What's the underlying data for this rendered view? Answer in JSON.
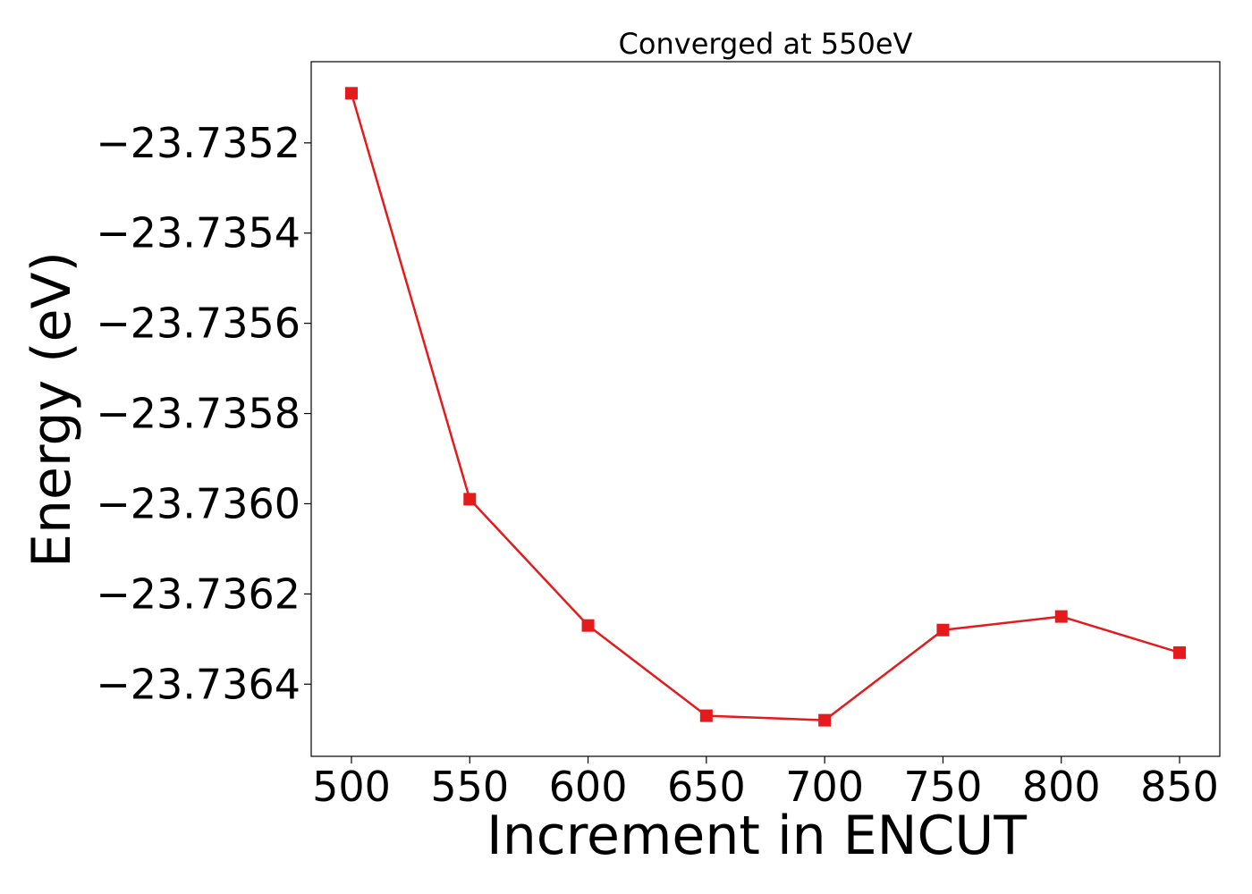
{
  "chart_data": {
    "type": "line",
    "title": "Converged at 550eV",
    "xlabel": "Increment in ENCUT",
    "ylabel": "Energy (eV)",
    "x": [
      500,
      550,
      600,
      650,
      700,
      750,
      800,
      850
    ],
    "series": [
      {
        "values": [
          -23.73509,
          -23.73599,
          -23.73627,
          -23.73647,
          -23.73648,
          -23.73628,
          -23.73625,
          -23.73633
        ],
        "color": "#e41a1c",
        "marker": "square"
      }
    ],
    "xlim": [
      483,
      867
    ],
    "ylim": [
      -23.73656,
      -23.73502
    ],
    "xticks": [
      500,
      550,
      600,
      650,
      700,
      750,
      800,
      850
    ],
    "xtick_labels": [
      "500",
      "550",
      "600",
      "650",
      "700",
      "750",
      "800",
      "850"
    ],
    "yticks": [
      -23.7352,
      -23.7354,
      -23.7356,
      -23.7358,
      -23.736,
      -23.7362,
      -23.7364
    ],
    "ytick_labels": [
      "−23.7352",
      "−23.7354",
      "−23.7356",
      "−23.7358",
      "−23.7360",
      "−23.7362",
      "−23.7364"
    ],
    "grid": false,
    "legend": "none"
  }
}
